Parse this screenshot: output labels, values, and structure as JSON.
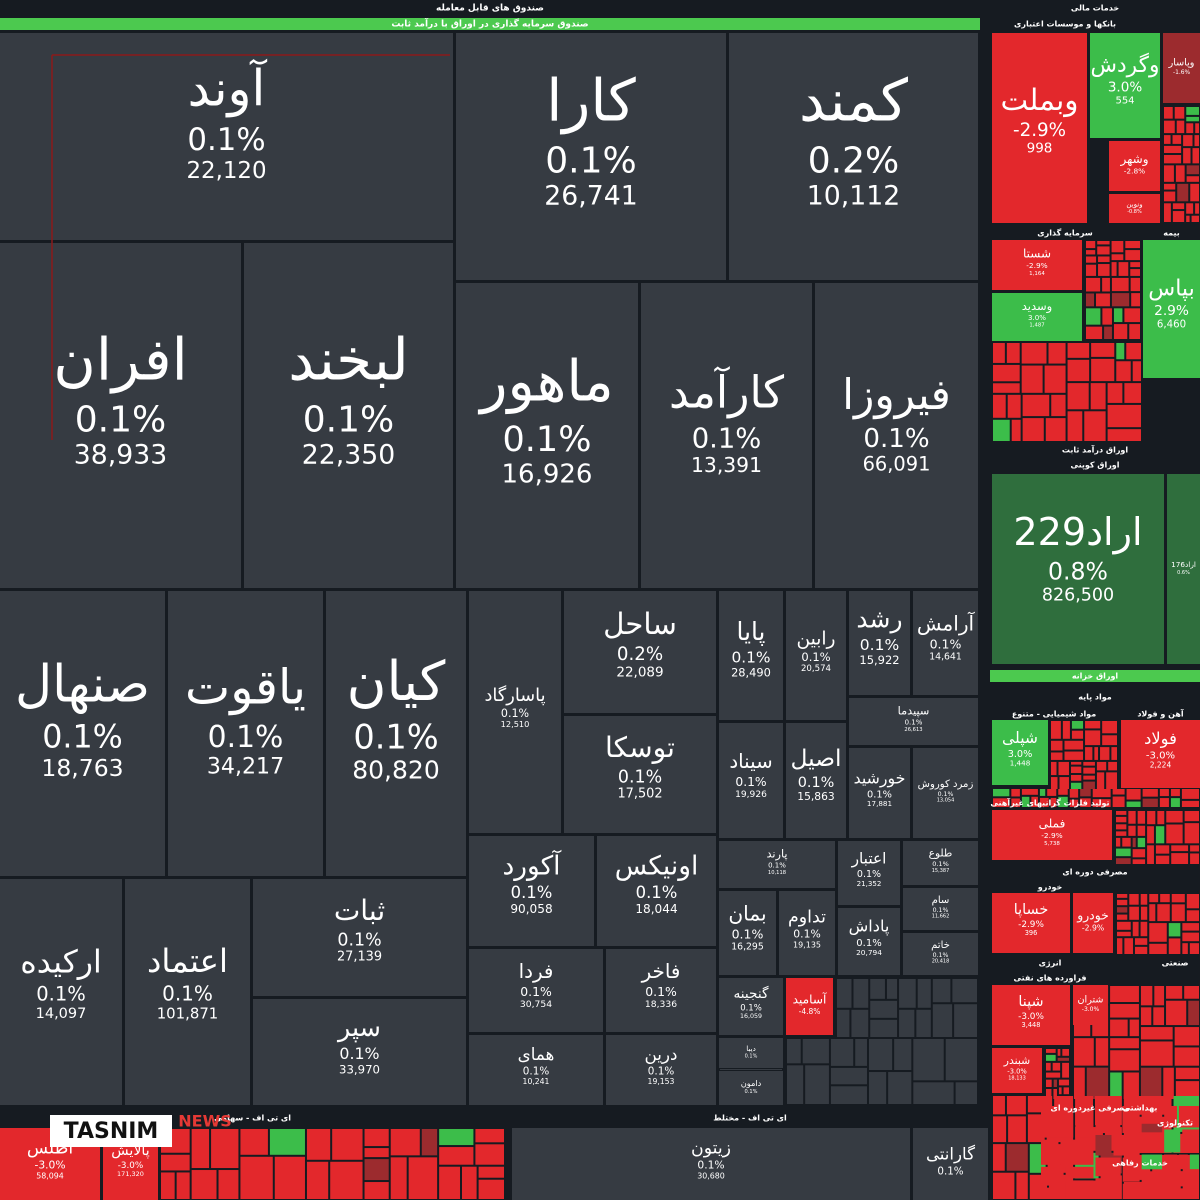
{
  "header": {
    "title": "صندوق های قابل معامله",
    "subtitle": "صندوق سرمایه گذاری در اوراق با درآمد ثابت"
  },
  "sections": [
    "خدمات مالی",
    "بانکها و موسسات اعتباری",
    "سرمایه گذاری",
    "بیمه",
    "اوراق درآمد ثابت",
    "اوراق کوپنی",
    "اوراق خزانه",
    "مواد پایه",
    "مواد شیمیایی - متنوع",
    "آهن و فولاد",
    "تولید فلزات گرانبهای غیرآهنی",
    "مصرفی دوره ای",
    "خودرو",
    "انرژی",
    "فراورده های نفتی",
    "مصرفی غیردوره ای",
    "بهداشتی",
    "خدمات رفاهی",
    "صنعتی",
    "تکنولوژی",
    "ای تی اف - سهامی",
    "ای تی اف - مختلط"
  ],
  "tiles": [
    {
      "name": "آوند",
      "change": "0.1%",
      "volume": "22,120"
    },
    {
      "name": "کارا",
      "change": "0.1%",
      "volume": "26,741"
    },
    {
      "name": "کمند",
      "change": "0.2%",
      "volume": "10,112"
    },
    {
      "name": "افران",
      "change": "0.1%",
      "volume": "38,933"
    },
    {
      "name": "لبخند",
      "change": "0.1%",
      "volume": "22,350"
    },
    {
      "name": "ماهور",
      "change": "0.1%",
      "volume": "16,926"
    },
    {
      "name": "کارآمد",
      "change": "0.1%",
      "volume": "13,391"
    },
    {
      "name": "فیروزا",
      "change": "0.1%",
      "volume": "66,091"
    },
    {
      "name": "صنهال",
      "change": "0.1%",
      "volume": "18,763"
    },
    {
      "name": "یاقوت",
      "change": "0.1%",
      "volume": "34,217"
    },
    {
      "name": "کیان",
      "change": "0.1%",
      "volume": "80,820"
    },
    {
      "name": "پاسارگاد",
      "change": "0.1%",
      "volume": "12,510"
    },
    {
      "name": "ساحل",
      "change": "0.2%",
      "volume": "22,089"
    },
    {
      "name": "توسکا",
      "change": "0.1%",
      "volume": "17,502"
    },
    {
      "name": "پایا",
      "change": "0.1%",
      "volume": "28,490"
    },
    {
      "name": "رابین",
      "change": "0.1%",
      "volume": "20,574"
    },
    {
      "name": "رشد",
      "change": "0.1%",
      "volume": "15,922"
    },
    {
      "name": "آرامش",
      "change": "0.1%",
      "volume": "14,641"
    },
    {
      "name": "سپیدما",
      "change": "0.1%",
      "volume": "26,613"
    },
    {
      "name": "سیناد",
      "change": "0.1%",
      "volume": "19,926"
    },
    {
      "name": "اصیل",
      "change": "0.1%",
      "volume": "15,863"
    },
    {
      "name": "خورشید",
      "change": "0.1%",
      "volume": "17,881"
    },
    {
      "name": "زمرد کوروش",
      "change": "0.1%",
      "volume": "13,054"
    },
    {
      "name": "ارکیده",
      "change": "0.1%",
      "volume": "14,097"
    },
    {
      "name": "اعتماد",
      "change": "0.1%",
      "volume": "101,871"
    },
    {
      "name": "ثبات",
      "change": "0.1%",
      "volume": "27,139"
    },
    {
      "name": "سپر",
      "change": "0.1%",
      "volume": "33,970"
    },
    {
      "name": "آکورد",
      "change": "0.1%",
      "volume": "90,058"
    },
    {
      "name": "اونیکس",
      "change": "0.1%",
      "volume": "18,044"
    },
    {
      "name": "فردا",
      "change": "0.1%",
      "volume": "30,754"
    },
    {
      "name": "فاخر",
      "change": "0.1%",
      "volume": "18,336"
    },
    {
      "name": "همای",
      "change": "0.1%",
      "volume": "10,241"
    },
    {
      "name": "درین",
      "change": "0.1%",
      "volume": "19,153"
    },
    {
      "name": "پارند",
      "change": "0.1%",
      "volume": "10,118"
    },
    {
      "name": "بمان",
      "change": "0.1%",
      "volume": "16,295"
    },
    {
      "name": "تداوم",
      "change": "0.1%",
      "volume": "19,135"
    },
    {
      "name": "اعتبار",
      "change": "0.1%",
      "volume": "21,352"
    },
    {
      "name": "پاداش",
      "change": "0.1%",
      "volume": "20,794"
    },
    {
      "name": "طلوع",
      "change": "0.1%",
      "volume": "15,387"
    },
    {
      "name": "سام",
      "change": "0.1%",
      "volume": "11,662"
    },
    {
      "name": "خاتم",
      "change": "0.1%",
      "volume": "20,418"
    },
    {
      "name": "گنجینه",
      "change": "0.1%",
      "volume": "16,059"
    },
    {
      "name": "آسامید",
      "change": "-4.8%"
    },
    {
      "name": "دیبا",
      "change": "0.1%"
    },
    {
      "name": "دامون",
      "change": "0.1%"
    },
    {
      "name": "وبملت",
      "change": "-2.9%",
      "volume": "998"
    },
    {
      "name": "وگردش",
      "change": "3.0%",
      "volume": "554"
    },
    {
      "name": "وپاسار",
      "change": "-1.6%"
    },
    {
      "name": "وشهر",
      "change": "-2.8%"
    },
    {
      "name": "ونوین",
      "change": "-0.8%"
    },
    {
      "name": "شستا",
      "change": "-2.9%",
      "volume": "1,164"
    },
    {
      "name": "وسدید",
      "change": "3.0%",
      "volume": "1,487"
    },
    {
      "name": "بپاس",
      "change": "2.9%",
      "volume": "6,460"
    },
    {
      "name": "اراد229",
      "change": "0.8%",
      "volume": "826,500"
    },
    {
      "name": "اراد176",
      "change": "0.6%"
    },
    {
      "name": "شپلی",
      "change": "3.0%",
      "volume": "1,448"
    },
    {
      "name": "فولاد",
      "change": "-3.0%",
      "volume": "2,224"
    },
    {
      "name": "فملی",
      "change": "-2.9%",
      "volume": "5,738"
    },
    {
      "name": "خساپا",
      "change": "-2.9%",
      "volume": "396"
    },
    {
      "name": "خودرو",
      "change": "-2.9%"
    },
    {
      "name": "شپنا",
      "change": "-3.0%",
      "volume": "3,448"
    },
    {
      "name": "شتران",
      "change": "-3.0%"
    },
    {
      "name": "شبندر",
      "change": "-3.0%",
      "volume": "18,133"
    },
    {
      "name": "زیتون",
      "change": "0.1%",
      "volume": "30,680"
    },
    {
      "name": "گارانتی",
      "change": "0.1%"
    },
    {
      "name": "اطلس",
      "change": "-3.0%",
      "volume": "58,094"
    },
    {
      "name": "پالایش",
      "change": "-3.0%",
      "volume": "171,320"
    }
  ],
  "watermark": {
    "brand": "TASNIM",
    "suffix": "NEWS"
  }
}
